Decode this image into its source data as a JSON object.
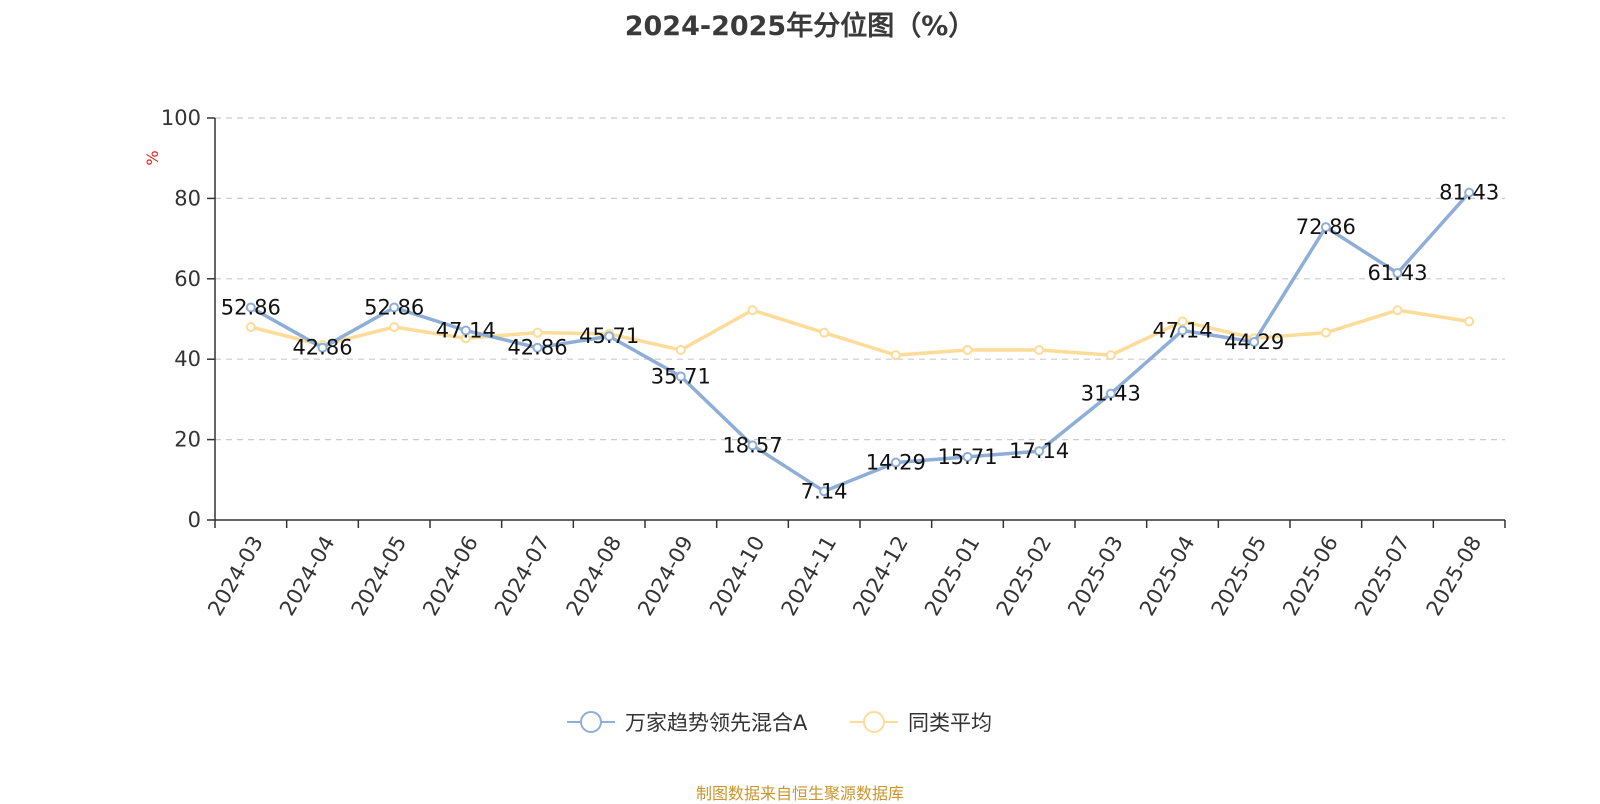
{
  "chart_data": {
    "type": "line",
    "title": "2024-2025年分位图（%）",
    "ylabel": "%",
    "ylim": [
      0,
      100
    ],
    "yticks": [
      0,
      20,
      40,
      60,
      80,
      100
    ],
    "grid": true,
    "legend_position": "bottom-center",
    "categories": [
      "2024-03",
      "2024-04",
      "2024-05",
      "2024-06",
      "2024-07",
      "2024-08",
      "2024-09",
      "2024-10",
      "2024-11",
      "2024-12",
      "2025-01",
      "2025-02",
      "2025-03",
      "2025-04",
      "2025-05",
      "2025-06",
      "2025-07",
      "2025-08"
    ],
    "series": [
      {
        "name": "万家趋势领先混合A",
        "color": "#8eaed8",
        "values": [
          52.86,
          42.86,
          52.86,
          47.14,
          42.86,
          45.71,
          35.71,
          18.57,
          7.14,
          14.29,
          15.71,
          17.14,
          31.43,
          47.14,
          44.29,
          72.86,
          61.43,
          81.43
        ],
        "labels": [
          "52.86",
          "42.86",
          "52.86",
          "47.14",
          "42.86",
          "45.71",
          "35.71",
          "18.57",
          "7.14",
          "14.29",
          "15.71",
          "17.14",
          "31.43",
          "47.14",
          "44.29",
          "72.86",
          "61.43",
          "81.43"
        ]
      },
      {
        "name": "同类平均",
        "color": "#fddc9a",
        "values": [
          48.0,
          43.5,
          48.0,
          45.2,
          46.6,
          46.3,
          42.3,
          52.2,
          46.6,
          41.0,
          42.3,
          42.3,
          41.0,
          49.4,
          45.2,
          46.6,
          52.2,
          49.4
        ]
      }
    ],
    "source_note": "制图数据来自恒生聚源数据库"
  }
}
